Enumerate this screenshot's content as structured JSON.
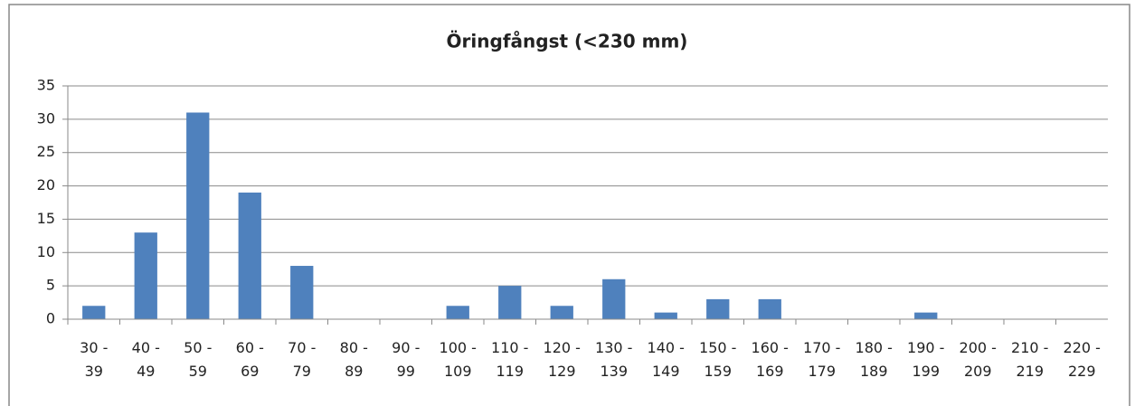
{
  "chart_data": {
    "type": "bar",
    "title": "Öringfångst (<230 mm)",
    "categories": [
      "30 -\n39",
      "40 -\n49",
      "50 -\n59",
      "60 -\n69",
      "70 -\n79",
      "80 -\n89",
      "90 -\n99",
      "100 -\n109",
      "110 -\n119",
      "120 -\n129",
      "130 -\n139",
      "140 -\n149",
      "150 -\n159",
      "160 -\n169",
      "170 -\n179",
      "180 -\n189",
      "190 -\n199",
      "200 -\n209",
      "210 -\n219",
      "220 -\n229"
    ],
    "values": [
      2,
      13,
      31,
      19,
      8,
      0,
      0,
      2,
      5,
      2,
      6,
      1,
      3,
      3,
      0,
      0,
      1,
      0,
      0,
      0
    ],
    "color": "#4f81bd",
    "ylim": [
      0,
      35
    ],
    "yticks": [
      0,
      5,
      10,
      15,
      20,
      25,
      30,
      35
    ],
    "grid": true
  }
}
